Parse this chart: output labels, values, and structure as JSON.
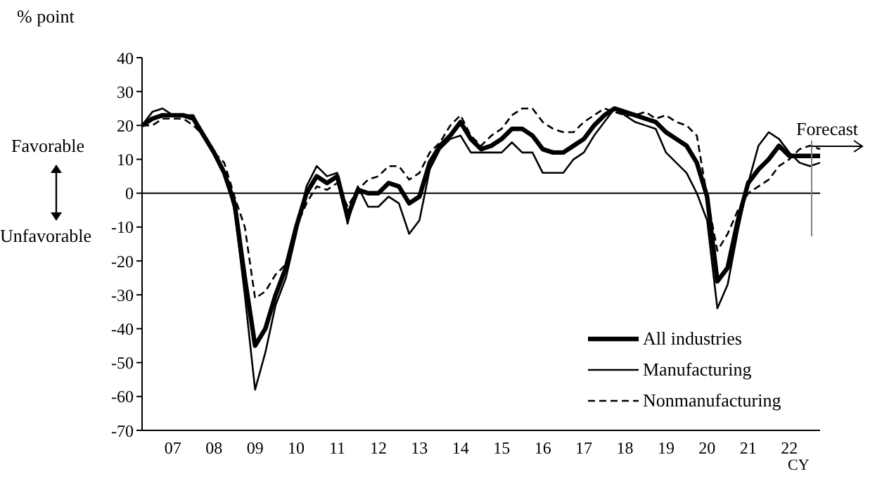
{
  "chart_data": {
    "type": "line",
    "ylabel": "% point",
    "xlabel": "CY",
    "categories": [
      null,
      null,
      null,
      "07",
      null,
      null,
      null,
      "08",
      null,
      null,
      null,
      "09",
      null,
      null,
      null,
      "10",
      null,
      null,
      null,
      "11",
      null,
      null,
      null,
      "12",
      null,
      null,
      null,
      "13",
      null,
      null,
      null,
      "14",
      null,
      null,
      null,
      "15",
      null,
      null,
      null,
      "16",
      null,
      null,
      null,
      "17",
      null,
      null,
      null,
      "18",
      null,
      null,
      null,
      "19",
      null,
      null,
      null,
      "20",
      null,
      null,
      null,
      "21",
      null,
      null,
      null,
      "22",
      null,
      null,
      null
    ],
    "series": [
      {
        "name": "All industries",
        "color": "#000000",
        "line_style": "solid",
        "values": [
          20,
          22,
          23,
          23,
          23,
          22,
          17,
          12,
          6,
          -3,
          -25,
          -45,
          -40,
          -30,
          -22,
          -10,
          0,
          5,
          3,
          5,
          -7,
          1,
          0,
          0,
          3,
          2,
          -3,
          -1,
          9,
          14,
          17,
          21,
          16,
          13,
          14,
          16,
          19,
          19,
          17,
          13,
          12,
          12,
          14,
          16,
          20,
          23,
          25,
          24,
          23,
          22,
          21,
          18,
          16,
          14,
          9,
          -1,
          -26,
          -22,
          -8,
          3,
          7,
          10,
          14,
          11,
          11,
          11,
          11
        ]
      },
      {
        "name": "Manufacturing",
        "color": "#000000",
        "line_style": "solid",
        "values": [
          20,
          24,
          25,
          23,
          23,
          23,
          17,
          12,
          6,
          -5,
          -30,
          -58,
          -47,
          -33,
          -25,
          -12,
          2,
          8,
          5,
          6,
          -9,
          2,
          -4,
          -4,
          -1,
          -3,
          -12,
          -8,
          7,
          13,
          16,
          17,
          12,
          12,
          12,
          12,
          15,
          12,
          12,
          6,
          6,
          6,
          10,
          12,
          17,
          21,
          25,
          23,
          21,
          20,
          19,
          12,
          9,
          6,
          0,
          -8,
          -34,
          -27,
          -11,
          3,
          14,
          18,
          16,
          12,
          9,
          8,
          9
        ]
      },
      {
        "name": "Nonmanufacturing",
        "color": "#000000",
        "line_style": "dashed",
        "values": [
          20,
          20,
          22,
          22,
          22,
          20,
          17,
          12,
          9,
          -1,
          -10,
          -31,
          -29,
          -24,
          -21,
          -10,
          -3,
          2,
          1,
          3,
          -4,
          1,
          4,
          5,
          8,
          8,
          4,
          6,
          12,
          15,
          20,
          23,
          17,
          14,
          17,
          19,
          23,
          25,
          25,
          21,
          19,
          18,
          18,
          21,
          23,
          25,
          24,
          23,
          23,
          24,
          22,
          23,
          21,
          20,
          17,
          -1,
          -17,
          -12,
          -5,
          0,
          2,
          4,
          8,
          10,
          13,
          14,
          13
        ]
      }
    ],
    "ylim": [
      -70,
      40
    ],
    "yticks": [
      -70,
      -60,
      -50,
      -40,
      -30,
      -20,
      -10,
      0,
      10,
      20,
      30,
      40
    ],
    "ref_lines": [
      {
        "axis": "y",
        "value": 0,
        "color": "#000000"
      }
    ],
    "annotations": [
      "Favorable",
      "Unfavorable",
      "Forecast"
    ],
    "legend": "bottom right",
    "grid": false,
    "marker": "none"
  }
}
